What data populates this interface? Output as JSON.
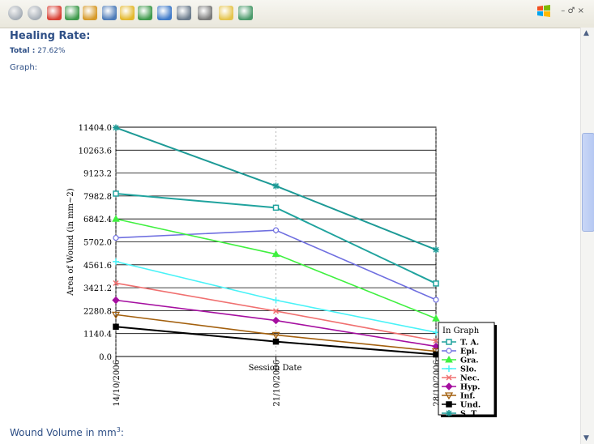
{
  "toolbar": {
    "items": [
      "back-icon",
      "forward-icon",
      "stop-icon",
      "refresh-icon",
      "home-icon",
      "search-icon",
      "favorites-icon",
      "history-icon",
      "mail-icon",
      "print-icon",
      "edit-icon",
      "discuss-icon",
      "messenger-icon"
    ],
    "window_controls": "– ♂ ×"
  },
  "page": {
    "title": "Healing Rate:",
    "total_label": "Total :",
    "total_value": "27.62%",
    "graph_label": "Graph:",
    "wound_volume_label": "Wound Volume in mm",
    "wound_volume_sup": "3",
    "wound_volume_suffix": ":"
  },
  "chart_data": {
    "type": "line",
    "title": "",
    "xlabel": "Session Date",
    "ylabel": "Area of Wound (in mm~2)",
    "x": [
      "14/10/2006",
      "21/10/2006",
      "28/10/2006"
    ],
    "yticks": [
      "0.0",
      "1140.4",
      "2280.8",
      "3421.2",
      "4561.6",
      "5702.0",
      "6842.4",
      "7982.8",
      "9123.2",
      "10263.6",
      "11404.0"
    ],
    "ylim": [
      0,
      11404
    ],
    "grid": true,
    "legend": {
      "title": "In Graph",
      "placement": "bottom-right"
    },
    "series": [
      {
        "name": "T. A.",
        "values": [
          8100,
          7400,
          3630
        ],
        "color": "#20a39e",
        "marker": "square"
      },
      {
        "name": "Epi.",
        "values": [
          5900,
          6280,
          2820
        ],
        "color": "#6f6fe0",
        "marker": "circle"
      },
      {
        "name": "Gra.",
        "values": [
          6840,
          5090,
          1890
        ],
        "color": "#3ff03f",
        "marker": "triangle"
      },
      {
        "name": "Slo.",
        "values": [
          4720,
          2800,
          1200
        ],
        "color": "#49f2f7",
        "marker": "plus"
      },
      {
        "name": "Nec.",
        "values": [
          3650,
          2260,
          780
        ],
        "color": "#f07070",
        "marker": "x"
      },
      {
        "name": "Hyp.",
        "values": [
          2800,
          1790,
          500
        ],
        "color": "#a50fa0",
        "marker": "diamond"
      },
      {
        "name": "Inf.",
        "values": [
          2080,
          1070,
          260
        ],
        "color": "#a3600e",
        "marker": "triangle-down"
      },
      {
        "name": "Und.",
        "values": [
          1480,
          740,
          100
        ],
        "color": "#000000",
        "marker": "filled-square"
      },
      {
        "name": "S. T.",
        "values": [
          11380,
          8480,
          5310
        ],
        "color": "#1d9a96",
        "marker": "star"
      }
    ]
  }
}
